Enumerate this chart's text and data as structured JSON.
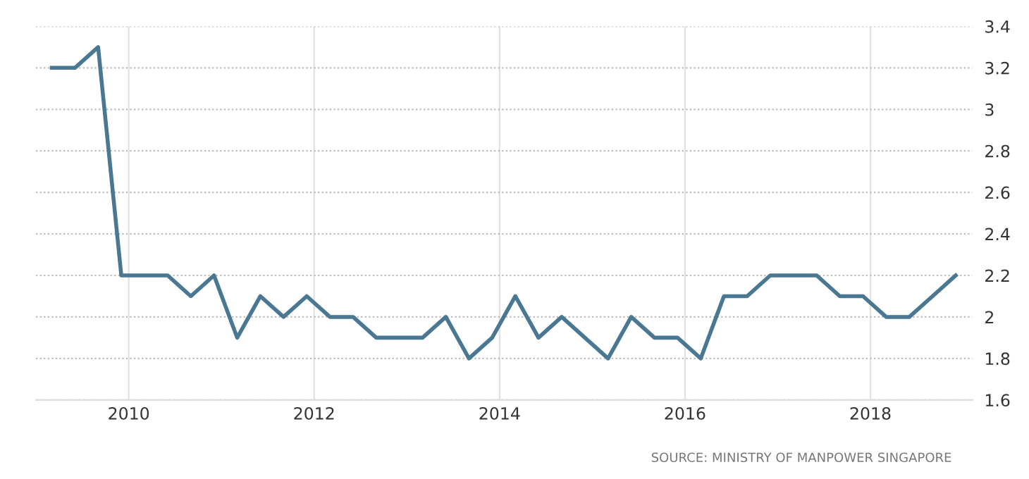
{
  "chart_data": {
    "type": "line",
    "x": [
      2009.17,
      2009.42,
      2009.67,
      2009.92,
      2010.17,
      2010.42,
      2010.67,
      2010.92,
      2011.17,
      2011.42,
      2011.67,
      2011.92,
      2012.17,
      2012.42,
      2012.67,
      2012.92,
      2013.17,
      2013.42,
      2013.67,
      2013.92,
      2014.17,
      2014.42,
      2014.67,
      2014.92,
      2015.17,
      2015.42,
      2015.67,
      2015.92,
      2016.17,
      2016.42,
      2016.67,
      2016.92,
      2017.17,
      2017.42,
      2017.67,
      2017.92,
      2018.17,
      2018.42,
      2018.67,
      2018.92
    ],
    "series": [
      {
        "color": "#4a7893",
        "values": [
          3.2,
          3.2,
          3.3,
          2.2,
          2.2,
          2.2,
          2.1,
          2.2,
          1.9,
          2.1,
          2.0,
          2.1,
          2.0,
          2.0,
          1.9,
          1.9,
          1.9,
          2.0,
          1.8,
          1.9,
          2.1,
          1.9,
          2.0,
          1.9,
          1.8,
          2.0,
          1.9,
          1.9,
          1.8,
          2.1,
          2.1,
          2.2,
          2.2,
          2.2,
          2.1,
          2.1,
          2.0,
          2.0,
          2.1,
          2.2
        ]
      }
    ],
    "xlim": [
      2009.0,
      2019.1
    ],
    "xticks": [
      2010,
      2012,
      2014,
      2016,
      2018
    ],
    "ylim": [
      1.6,
      3.4
    ],
    "yticks": [
      1.6,
      1.8,
      2,
      2.2,
      2.4,
      2.6,
      2.8,
      3,
      3.2,
      3.4
    ],
    "grid": true,
    "marker": "none",
    "line_style": "solid",
    "annotations": [
      "SOURCE: MINISTRY OF MANPOWER SINGAPORE"
    ]
  }
}
